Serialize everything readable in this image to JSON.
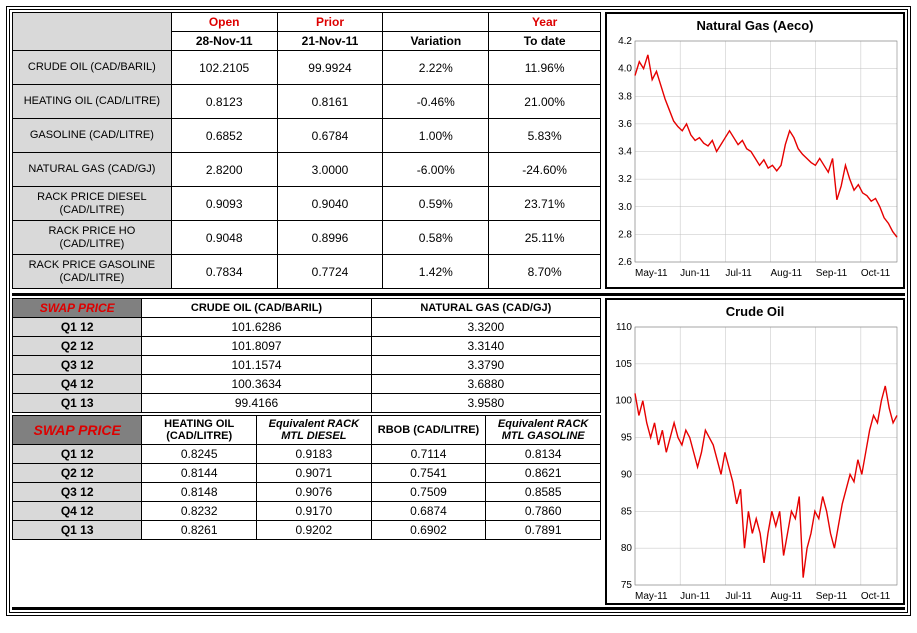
{
  "main_table": {
    "headers": {
      "open": "Open",
      "prior": "Prior",
      "variation_blank": "",
      "year": "Year",
      "open_date": "28-Nov-11",
      "prior_date": "21-Nov-11",
      "variation": "Variation",
      "to_date": "To date"
    },
    "rows": [
      {
        "label": "CRUDE OIL (CAD/BARIL)",
        "open": "102.2105",
        "prior": "99.9924",
        "var": "2.22%",
        "ytd": "11.96%"
      },
      {
        "label": "HEATING OIL (CAD/LITRE)",
        "open": "0.8123",
        "prior": "0.8161",
        "var": "-0.46%",
        "ytd": "21.00%"
      },
      {
        "label": "GASOLINE (CAD/LITRE)",
        "open": "0.6852",
        "prior": "0.6784",
        "var": "1.00%",
        "ytd": "5.83%"
      },
      {
        "label": "NATURAL GAS (CAD/GJ)",
        "open": "2.8200",
        "prior": "3.0000",
        "var": "-6.00%",
        "ytd": "-24.60%"
      },
      {
        "label": "RACK PRICE DIESEL (CAD/LITRE)",
        "open": "0.9093",
        "prior": "0.9040",
        "var": "0.59%",
        "ytd": "23.71%"
      },
      {
        "label": "RACK PRICE HO (CAD/LITRE)",
        "open": "0.9048",
        "prior": "0.8996",
        "var": "0.58%",
        "ytd": "25.11%"
      },
      {
        "label": "RACK PRICE GASOLINE (CAD/LITRE)",
        "open": "0.7834",
        "prior": "0.7724",
        "var": "1.42%",
        "ytd": "8.70%"
      }
    ]
  },
  "swap1": {
    "title": "SWAP PRICE",
    "col1": "CRUDE OIL (CAD/BARIL)",
    "col2": "NATURAL GAS (CAD/GJ)",
    "rows": [
      {
        "q": "Q1 12",
        "crude": "101.6286",
        "ng": "3.3200"
      },
      {
        "q": "Q2 12",
        "crude": "101.8097",
        "ng": "3.3140"
      },
      {
        "q": "Q3 12",
        "crude": "101.1574",
        "ng": "3.3790"
      },
      {
        "q": "Q4 12",
        "crude": "100.3634",
        "ng": "3.6880"
      },
      {
        "q": "Q1 13",
        "crude": "99.4166",
        "ng": "3.9580"
      }
    ]
  },
  "swap2": {
    "title": "SWAP PRICE",
    "cols": [
      "HEATING OIL (CAD/LITRE)",
      "Equivalent RACK MTL DIESEL",
      "RBOB (CAD/LITRE)",
      "Equivalent RACK MTL GASOLINE"
    ],
    "rows": [
      {
        "q": "Q1 12",
        "v": [
          "0.8245",
          "0.9183",
          "0.7114",
          "0.8134"
        ]
      },
      {
        "q": "Q2 12",
        "v": [
          "0.8144",
          "0.9071",
          "0.7541",
          "0.8621"
        ]
      },
      {
        "q": "Q3 12",
        "v": [
          "0.8148",
          "0.9076",
          "0.7509",
          "0.8585"
        ]
      },
      {
        "q": "Q4 12",
        "v": [
          "0.8232",
          "0.9170",
          "0.6874",
          "0.7860"
        ]
      },
      {
        "q": "Q1 13",
        "v": [
          "0.8261",
          "0.9202",
          "0.6902",
          "0.7891"
        ]
      }
    ]
  },
  "chart_ng": {
    "title": "Natural Gas (Aeco)",
    "type": "line",
    "line_color": "#e60000",
    "grid_color": "#c0c0c0",
    "bg": "#ffffff",
    "ylim": [
      2.6,
      4.2
    ],
    "ytick_step": 0.2,
    "x_labels": [
      "May-11",
      "Jun-11",
      "Jul-11",
      "Aug-11",
      "Sep-11",
      "Oct-11"
    ],
    "data": [
      3.95,
      4.05,
      4.0,
      4.1,
      3.92,
      3.98,
      3.88,
      3.78,
      3.7,
      3.62,
      3.58,
      3.55,
      3.6,
      3.52,
      3.48,
      3.5,
      3.46,
      3.44,
      3.48,
      3.4,
      3.45,
      3.5,
      3.55,
      3.5,
      3.45,
      3.48,
      3.42,
      3.4,
      3.35,
      3.3,
      3.34,
      3.28,
      3.3,
      3.26,
      3.3,
      3.45,
      3.55,
      3.5,
      3.42,
      3.38,
      3.35,
      3.32,
      3.3,
      3.35,
      3.3,
      3.25,
      3.35,
      3.05,
      3.15,
      3.3,
      3.2,
      3.12,
      3.16,
      3.1,
      3.08,
      3.04,
      3.06,
      3.0,
      2.92,
      2.88,
      2.82,
      2.78
    ]
  },
  "chart_crude": {
    "title": "Crude Oil",
    "type": "line",
    "line_color": "#e60000",
    "grid_color": "#c0c0c0",
    "bg": "#ffffff",
    "ylim": [
      75,
      110
    ],
    "ytick_step": 5,
    "x_labels": [
      "May-11",
      "Jun-11",
      "Jul-11",
      "Aug-11",
      "Sep-11",
      "Oct-11"
    ],
    "data": [
      101,
      98,
      100,
      97,
      95,
      97,
      94,
      96,
      93,
      95,
      97,
      95,
      94,
      96,
      95,
      93,
      91,
      93,
      96,
      95,
      94,
      92,
      90,
      93,
      91,
      89,
      86,
      88,
      80,
      85,
      82,
      84,
      82,
      78,
      82,
      85,
      83,
      85,
      79,
      82,
      85,
      84,
      87,
      76,
      80,
      82,
      85,
      84,
      87,
      85,
      82,
      80,
      83,
      86,
      88,
      90,
      89,
      92,
      90,
      93,
      96,
      98,
      97,
      100,
      102,
      99,
      97,
      98
    ]
  }
}
